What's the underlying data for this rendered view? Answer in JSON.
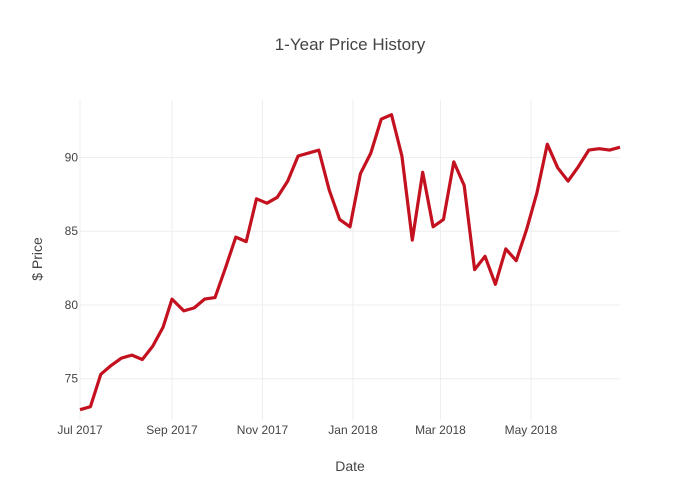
{
  "chart_data": {
    "type": "line",
    "title": "1-Year Price History",
    "xlabel": "Date",
    "ylabel": "$ Price",
    "grid": true,
    "legend": "none",
    "color": "#c4111f",
    "xlim": [
      "2017-07-01",
      "2018-06-30"
    ],
    "ylim": [
      72.2,
      93.9
    ],
    "xticks": [
      {
        "date": "2017-07-01",
        "label": "Jul 2017"
      },
      {
        "date": "2017-09-01",
        "label": "Sep 2017"
      },
      {
        "date": "2017-11-01",
        "label": "Nov 2017"
      },
      {
        "date": "2018-01-01",
        "label": "Jan 2018"
      },
      {
        "date": "2018-03-01",
        "label": "Mar 2018"
      },
      {
        "date": "2018-05-01",
        "label": "May 2018"
      }
    ],
    "yticks": [
      75,
      80,
      85,
      90
    ],
    "series": [
      {
        "name": "",
        "x": [
          "2017-07-01",
          "2017-07-08",
          "2017-07-15",
          "2017-07-22",
          "2017-07-29",
          "2017-08-05",
          "2017-08-12",
          "2017-08-19",
          "2017-08-26",
          "2017-09-01",
          "2017-09-09",
          "2017-09-16",
          "2017-09-23",
          "2017-09-30",
          "2017-10-07",
          "2017-10-14",
          "2017-10-21",
          "2017-10-28",
          "2017-11-04",
          "2017-11-11",
          "2017-11-18",
          "2017-11-25",
          "2017-12-02",
          "2017-12-09",
          "2017-12-16",
          "2017-12-23",
          "2017-12-30",
          "2018-01-06",
          "2018-01-13",
          "2018-01-20",
          "2018-01-27",
          "2018-02-03",
          "2018-02-10",
          "2018-02-17",
          "2018-02-24",
          "2018-03-03",
          "2018-03-10",
          "2018-03-17",
          "2018-03-24",
          "2018-03-31",
          "2018-04-07",
          "2018-04-14",
          "2018-04-21",
          "2018-04-28",
          "2018-05-05",
          "2018-05-12",
          "2018-05-19",
          "2018-05-26",
          "2018-06-02",
          "2018-06-09",
          "2018-06-16",
          "2018-06-23",
          "2018-06-30"
        ],
        "y": [
          72.9,
          73.1,
          75.3,
          75.9,
          76.4,
          76.6,
          76.3,
          77.2,
          78.5,
          80.4,
          79.6,
          79.8,
          80.4,
          80.5,
          82.5,
          84.6,
          84.3,
          87.2,
          86.9,
          87.3,
          88.4,
          90.1,
          90.3,
          90.5,
          87.8,
          85.8,
          85.3,
          88.9,
          90.3,
          92.6,
          92.9,
          90.1,
          84.4,
          89.0,
          85.3,
          85.8,
          89.7,
          88.1,
          82.4,
          83.3,
          81.4,
          83.8,
          83.0,
          85.1,
          87.6,
          90.9,
          89.3,
          88.4,
          89.4,
          90.5,
          90.6,
          90.5,
          90.7
        ]
      }
    ]
  }
}
